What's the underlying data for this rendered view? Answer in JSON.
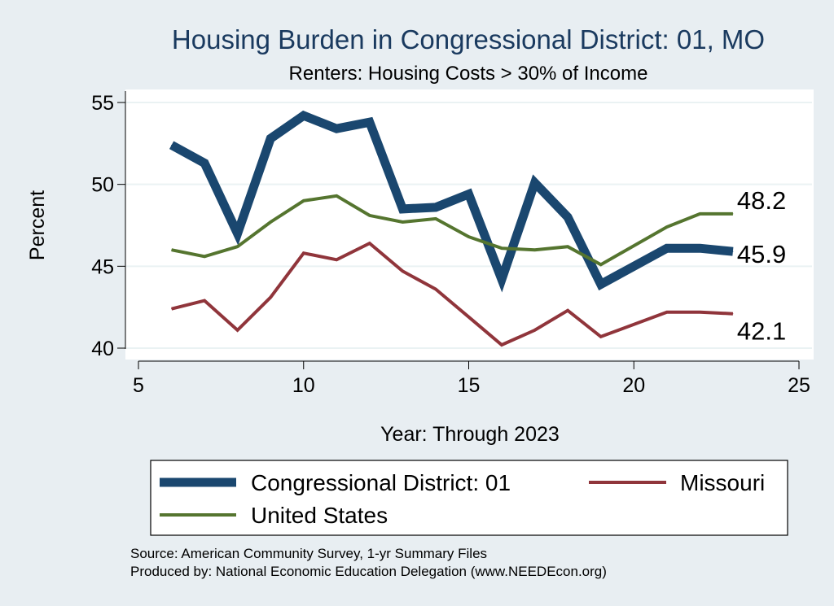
{
  "chart_data": {
    "type": "line",
    "title": "Housing Burden in Congressional District:  01, MO",
    "subtitle": "Renters: Housing Costs > 30% of Income",
    "xlabel": "Year: Through 2023",
    "ylabel": "Percent",
    "xlim": [
      5,
      25
    ],
    "ylim": [
      40,
      55
    ],
    "xticks": [
      5,
      10,
      15,
      20,
      25
    ],
    "yticks": [
      40,
      45,
      50,
      55
    ],
    "grid": true,
    "legend_position": "bottom",
    "series": [
      {
        "name": "Congressional District:  01",
        "color": "#1a476f",
        "x": [
          6,
          7,
          8,
          9,
          10,
          11,
          12,
          13,
          14,
          15,
          16,
          17,
          18,
          19,
          21,
          22,
          23
        ],
        "values": [
          52.4,
          51.3,
          47.0,
          52.8,
          54.2,
          53.4,
          53.8,
          48.5,
          48.6,
          49.4,
          44.2,
          50.1,
          48.0,
          43.9,
          46.1,
          46.1,
          45.9
        ],
        "end_label": "45.9"
      },
      {
        "name": "Missouri",
        "color": "#90353b",
        "x": [
          6,
          7,
          8,
          9,
          10,
          11,
          12,
          13,
          14,
          15,
          16,
          17,
          18,
          19,
          21,
          22,
          23
        ],
        "values": [
          42.4,
          42.9,
          41.1,
          43.1,
          45.8,
          45.4,
          46.4,
          44.7,
          43.6,
          41.9,
          40.2,
          41.1,
          42.3,
          40.7,
          42.2,
          42.2,
          42.1
        ],
        "end_label": "42.1"
      },
      {
        "name": "United States",
        "color": "#55752f",
        "x": [
          6,
          7,
          8,
          9,
          10,
          11,
          12,
          13,
          14,
          15,
          16,
          17,
          18,
          19,
          21,
          22,
          23
        ],
        "values": [
          46.0,
          45.6,
          46.2,
          47.7,
          49.0,
          49.3,
          48.1,
          47.7,
          47.9,
          46.8,
          46.1,
          46.0,
          46.2,
          45.1,
          47.4,
          48.2,
          48.2
        ],
        "end_label": "48.2"
      }
    ]
  },
  "source_lines": [
    "Source: American Community Survey, 1-yr Summary Files",
    "Produced by: National Economic Education Delegation (www.NEEDEcon.org)"
  ]
}
